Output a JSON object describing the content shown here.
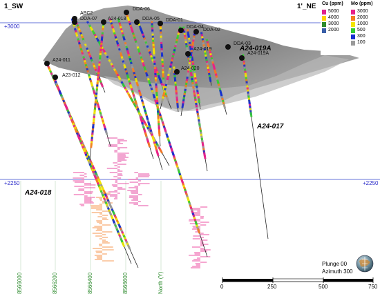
{
  "section": {
    "left_label": "1_SW",
    "right_label": "1'_NE"
  },
  "elevations": {
    "upper_left": "+3000",
    "lower_left": "+2250",
    "lower_right": "+2250"
  },
  "hole_labels": {
    "a24_019a": "A24-019A",
    "a24_017": "A24-017",
    "a24_018": "A24-018"
  },
  "collar_labels": [
    "ABC2",
    "DDA-07",
    "DDA-06",
    "A24-011",
    "A23-012",
    "A24-018",
    "DDA-02",
    "A24-019",
    "DDA-01",
    "DDA-03",
    "A24-019A",
    "A24-020",
    "DDA-04",
    "DDA-05"
  ],
  "legend": {
    "cu_title": "Cu (ppm)",
    "mo_title": "Mo (ppm)",
    "cu_items": [
      {
        "label": "5000",
        "color": "#e0208c"
      },
      {
        "label": "4000",
        "color": "#ffd000"
      },
      {
        "label": "3000",
        "color": "#2d8b2d"
      },
      {
        "label": "2000",
        "color": "#3a5fa8"
      }
    ],
    "mo_items": [
      {
        "label": "3000",
        "color": "#e8208a"
      },
      {
        "label": "2000",
        "color": "#f47b20"
      },
      {
        "label": "1000",
        "color": "#f2e600"
      },
      {
        "label": "500",
        "color": "#33cc33"
      },
      {
        "label": "300",
        "color": "#1530d0"
      },
      {
        "label": "100",
        "color": "#9a9a9a"
      }
    ]
  },
  "northings": [
    "8566000",
    "8566200",
    "8566400",
    "8566600",
    "North (Y)"
  ],
  "view": {
    "plunge": "Plunge 00",
    "azimuth": "Azimuth 300"
  },
  "scale": {
    "ticks": [
      "0",
      "250",
      "500",
      "750"
    ]
  },
  "colors": {
    "gridline": "#3344cc",
    "terrain_fill": "#8a8a8a",
    "northing": "#2e8b2e"
  }
}
